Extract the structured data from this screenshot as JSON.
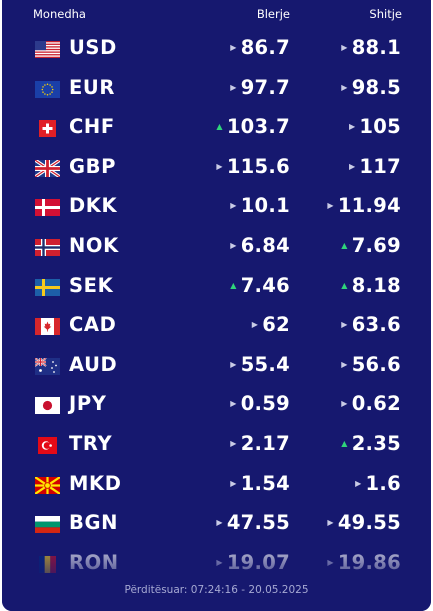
{
  "header": {
    "currency": "Monedha",
    "buy": "Blerje",
    "sell": "Shitje"
  },
  "rates": [
    {
      "code": "USD",
      "flag": "us-flag-icon",
      "buy": "86.7",
      "buy_trend": "neutral",
      "sell": "88.1",
      "sell_trend": "neutral"
    },
    {
      "code": "EUR",
      "flag": "eu-flag-icon",
      "buy": "97.7",
      "buy_trend": "neutral",
      "sell": "98.5",
      "sell_trend": "neutral"
    },
    {
      "code": "CHF",
      "flag": "ch-flag-icon",
      "buy": "103.7",
      "buy_trend": "up",
      "sell": "105",
      "sell_trend": "neutral"
    },
    {
      "code": "GBP",
      "flag": "gb-flag-icon",
      "buy": "115.6",
      "buy_trend": "neutral",
      "sell": "117",
      "sell_trend": "neutral"
    },
    {
      "code": "DKK",
      "flag": "dk-flag-icon",
      "buy": "10.1",
      "buy_trend": "neutral",
      "sell": "11.94",
      "sell_trend": "neutral"
    },
    {
      "code": "NOK",
      "flag": "no-flag-icon",
      "buy": "6.84",
      "buy_trend": "neutral",
      "sell": "7.69",
      "sell_trend": "up"
    },
    {
      "code": "SEK",
      "flag": "se-flag-icon",
      "buy": "7.46",
      "buy_trend": "up",
      "sell": "8.18",
      "sell_trend": "up"
    },
    {
      "code": "CAD",
      "flag": "ca-flag-icon",
      "buy": "62",
      "buy_trend": "neutral",
      "sell": "63.6",
      "sell_trend": "neutral"
    },
    {
      "code": "AUD",
      "flag": "au-flag-icon",
      "buy": "55.4",
      "buy_trend": "neutral",
      "sell": "56.6",
      "sell_trend": "neutral"
    },
    {
      "code": "JPY",
      "flag": "jp-flag-icon",
      "buy": "0.59",
      "buy_trend": "neutral",
      "sell": "0.62",
      "sell_trend": "neutral"
    },
    {
      "code": "TRY",
      "flag": "tr-flag-icon",
      "buy": "2.17",
      "buy_trend": "neutral",
      "sell": "2.35",
      "sell_trend": "up"
    },
    {
      "code": "MKD",
      "flag": "mk-flag-icon",
      "buy": "1.54",
      "buy_trend": "neutral",
      "sell": "1.6",
      "sell_trend": "neutral"
    },
    {
      "code": "BGN",
      "flag": "bg-flag-icon",
      "buy": "47.55",
      "buy_trend": "neutral",
      "sell": "49.55",
      "sell_trend": "neutral"
    },
    {
      "code": "RON",
      "flag": "ro-flag-icon",
      "buy": "19.07",
      "buy_trend": "neutral",
      "sell": "19.86",
      "sell_trend": "neutral"
    }
  ],
  "footer": {
    "updated": "Përditësuar: 07:24:16 - 20.05.2025"
  },
  "colors": {
    "background": "#16186f",
    "text": "#ffffff",
    "up_arrow": "#2fd47a",
    "neutral_arrow": "#c9cbe6"
  }
}
